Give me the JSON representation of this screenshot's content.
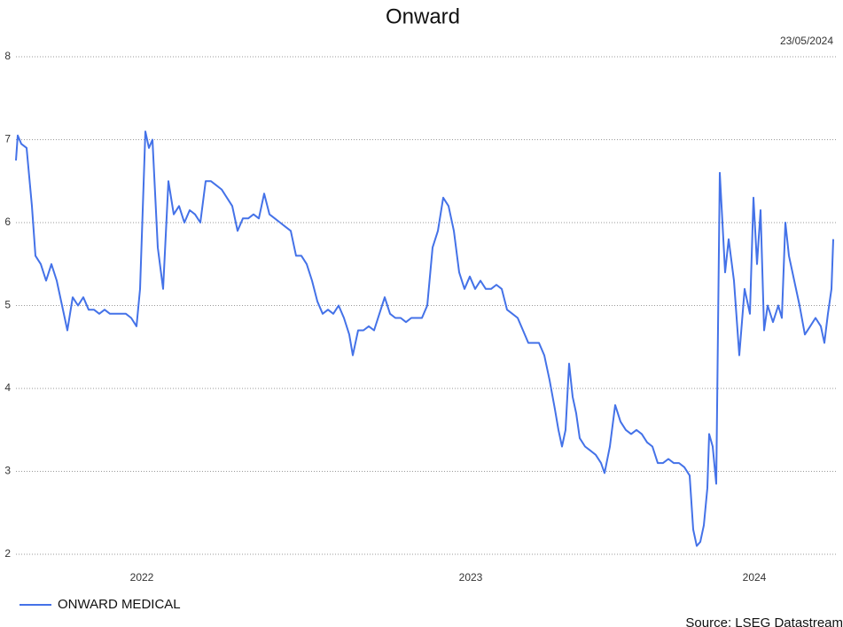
{
  "chart_data": {
    "type": "line",
    "title": "Onward",
    "date": "23/05/2024",
    "source": "Source: LSEG Datastream",
    "legend": "bottom-left",
    "grid": true,
    "xlim": [
      18,
      940
    ],
    "xticks": [
      {
        "value": 160,
        "label": "2022"
      },
      {
        "value": 531,
        "label": "2023"
      },
      {
        "value": 851,
        "label": "2024"
      }
    ],
    "ylim": [
      2,
      8
    ],
    "yticks": [
      2,
      3,
      4,
      5,
      6,
      7,
      8
    ],
    "x": [
      18,
      20,
      24,
      30,
      36,
      40,
      46,
      52,
      58,
      64,
      70,
      76,
      82,
      88,
      94,
      100,
      106,
      112,
      118,
      124,
      130,
      136,
      142,
      148,
      154,
      158,
      164,
      168,
      172,
      178,
      184,
      190,
      196,
      202,
      208,
      214,
      220,
      226,
      232,
      238,
      244,
      250,
      256,
      262,
      268,
      274,
      280,
      286,
      292,
      298,
      304,
      310,
      316,
      322,
      328,
      334,
      340,
      346,
      352,
      358,
      364,
      370,
      376,
      382,
      388,
      394,
      398,
      404,
      410,
      416,
      422,
      428,
      434,
      440,
      446,
      452,
      458,
      464,
      470,
      476,
      482,
      488,
      494,
      500,
      506,
      512,
      518,
      524,
      530,
      536,
      542,
      548,
      554,
      560,
      566,
      572,
      578,
      584,
      590,
      596,
      602,
      608,
      614,
      620,
      626,
      630,
      634,
      638,
      642,
      646,
      650,
      654,
      660,
      666,
      672,
      678,
      682,
      688,
      694,
      700,
      706,
      712,
      718,
      724,
      730,
      736,
      742,
      748,
      754,
      760,
      766,
      772,
      778,
      782,
      786,
      790,
      794,
      798,
      800,
      804,
      808,
      812,
      818,
      822,
      828,
      834,
      840,
      846,
      850,
      854,
      858,
      862,
      866,
      872,
      878,
      882,
      886,
      890,
      896,
      902,
      908,
      914,
      920,
      926,
      930,
      934,
      938,
      940
    ],
    "series": [
      {
        "name": "ONWARD MEDICAL",
        "color": "#4472e8",
        "values": [
          6.75,
          7.05,
          6.95,
          6.9,
          6.2,
          5.6,
          5.5,
          5.3,
          5.5,
          5.3,
          5.0,
          4.7,
          5.1,
          5.0,
          5.1,
          4.95,
          4.95,
          4.9,
          4.95,
          4.9,
          4.9,
          4.9,
          4.9,
          4.85,
          4.75,
          5.2,
          7.1,
          6.9,
          7.0,
          5.7,
          5.2,
          6.5,
          6.1,
          6.2,
          6.0,
          6.15,
          6.1,
          6.0,
          6.5,
          6.5,
          6.45,
          6.4,
          6.3,
          6.2,
          5.9,
          6.05,
          6.05,
          6.1,
          6.05,
          6.35,
          6.1,
          6.05,
          6.0,
          5.95,
          5.9,
          5.6,
          5.6,
          5.5,
          5.3,
          5.05,
          4.9,
          4.95,
          4.9,
          5.0,
          4.85,
          4.65,
          4.4,
          4.7,
          4.7,
          4.75,
          4.7,
          4.9,
          5.1,
          4.9,
          4.85,
          4.85,
          4.8,
          4.85,
          4.85,
          4.85,
          5.0,
          5.7,
          5.9,
          6.3,
          6.2,
          5.9,
          5.4,
          5.2,
          5.35,
          5.2,
          5.3,
          5.2,
          5.2,
          5.25,
          5.2,
          4.95,
          4.9,
          4.85,
          4.7,
          4.55,
          4.55,
          4.55,
          4.4,
          4.1,
          3.75,
          3.5,
          3.3,
          3.5,
          4.3,
          3.9,
          3.7,
          3.4,
          3.3,
          3.25,
          3.2,
          3.1,
          2.98,
          3.3,
          3.8,
          3.6,
          3.5,
          3.45,
          3.5,
          3.45,
          3.35,
          3.3,
          3.1,
          3.1,
          3.15,
          3.1,
          3.1,
          3.05,
          2.95,
          2.3,
          2.1,
          2.15,
          2.35,
          2.8,
          3.45,
          3.3,
          2.85,
          6.6,
          5.4,
          5.8,
          5.3,
          4.4,
          5.2,
          4.9,
          6.3,
          5.5,
          6.15,
          4.7,
          5.0,
          4.8,
          5.0,
          4.85,
          6.0,
          5.6,
          5.3,
          5.0,
          4.65,
          4.75,
          4.85,
          4.75,
          4.55,
          4.9,
          5.2,
          5.8
        ]
      }
    ]
  }
}
